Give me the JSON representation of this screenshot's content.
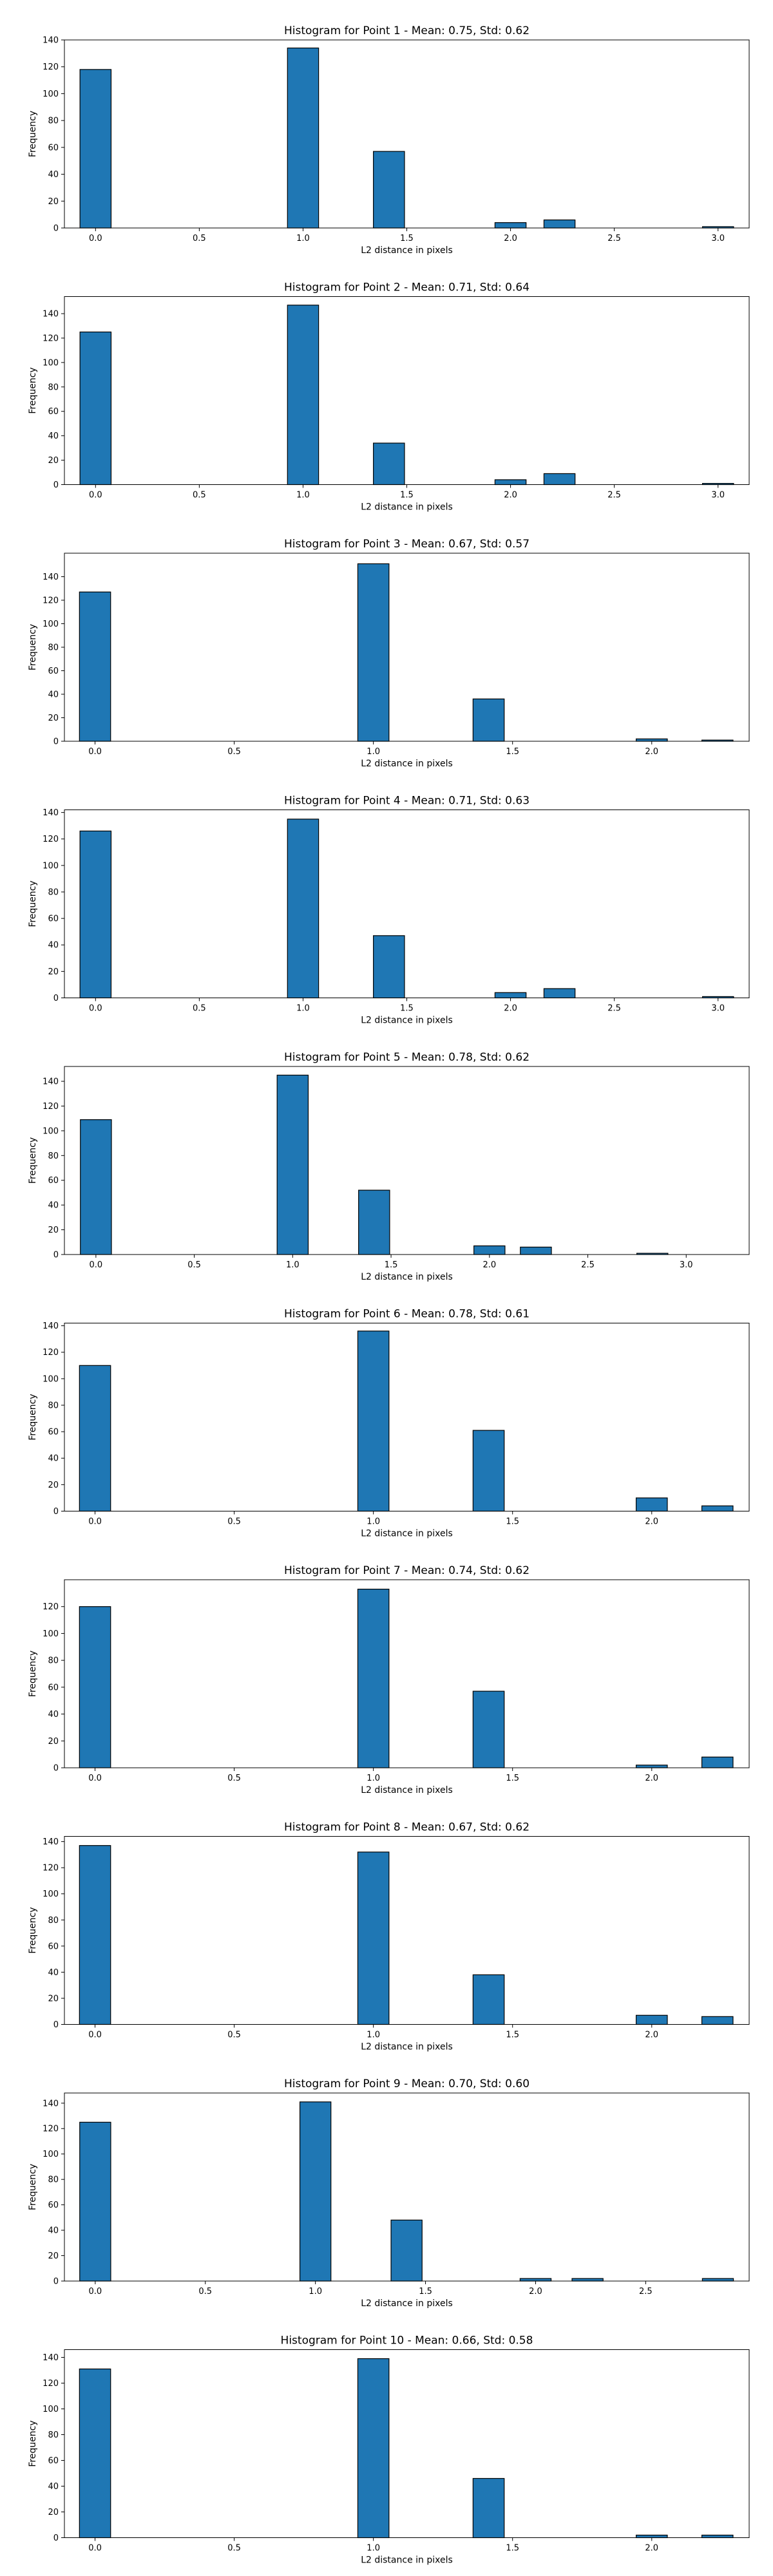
{
  "colors": {
    "bar": "#1f77b4",
    "edge": "#000000",
    "axes": "#000000",
    "background": "#ffffff"
  },
  "chart_data": [
    {
      "type": "bar",
      "title": "Histogram for Point 1 - Mean: 0.75, Std: 0.62",
      "xlabel": "L2 distance in pixels",
      "ylabel": "Frequency",
      "xlim": [
        -0.15,
        3.15
      ],
      "ylim": [
        0,
        140
      ],
      "xticks": [
        0.0,
        0.5,
        1.0,
        1.5,
        2.0,
        2.5,
        3.0
      ],
      "xtick_labels": [
        "0.0",
        "0.5",
        "1.0",
        "1.5",
        "2.0",
        "2.5",
        "3.0"
      ],
      "yticks": [
        0,
        20,
        40,
        60,
        80,
        100,
        120,
        140
      ],
      "ytick_labels": [
        "0",
        "20",
        "40",
        "60",
        "80",
        "100",
        "120",
        "140"
      ],
      "bin_width": 0.15,
      "bins": [
        {
          "x": 0.0,
          "value": 118
        },
        {
          "x": 1.0,
          "value": 134
        },
        {
          "x": 1.414,
          "value": 57
        },
        {
          "x": 2.0,
          "value": 4
        },
        {
          "x": 2.236,
          "value": 6
        },
        {
          "x": 3.0,
          "value": 1
        }
      ],
      "grid": false,
      "legend": "none"
    },
    {
      "type": "bar",
      "title": "Histogram for Point 2 - Mean: 0.71, Std: 0.64",
      "xlabel": "L2 distance in pixels",
      "ylabel": "Frequency",
      "xlim": [
        -0.15,
        3.15
      ],
      "ylim": [
        0,
        154
      ],
      "xticks": [
        0.0,
        0.5,
        1.0,
        1.5,
        2.0,
        2.5,
        3.0
      ],
      "xtick_labels": [
        "0.0",
        "0.5",
        "1.0",
        "1.5",
        "2.0",
        "2.5",
        "3.0"
      ],
      "yticks": [
        0,
        20,
        40,
        60,
        80,
        100,
        120,
        140
      ],
      "ytick_labels": [
        "0",
        "20",
        "40",
        "60",
        "80",
        "100",
        "120",
        "140"
      ],
      "bin_width": 0.15,
      "bins": [
        {
          "x": 0.0,
          "value": 125
        },
        {
          "x": 1.0,
          "value": 147
        },
        {
          "x": 1.414,
          "value": 34
        },
        {
          "x": 2.0,
          "value": 4
        },
        {
          "x": 2.236,
          "value": 9
        },
        {
          "x": 3.0,
          "value": 1
        }
      ],
      "grid": false,
      "legend": "none"
    },
    {
      "type": "bar",
      "title": "Histogram for Point 3 - Mean: 0.67, Std: 0.57",
      "xlabel": "L2 distance in pixels",
      "ylabel": "Frequency",
      "xlim": [
        -0.11,
        2.35
      ],
      "ylim": [
        0,
        160
      ],
      "xticks": [
        0.0,
        0.5,
        1.0,
        1.5,
        2.0
      ],
      "xtick_labels": [
        "0.0",
        "0.5",
        "1.0",
        "1.5",
        "2.0"
      ],
      "yticks": [
        0,
        20,
        40,
        60,
        80,
        100,
        120,
        140
      ],
      "ytick_labels": [
        "0",
        "20",
        "40",
        "60",
        "80",
        "100",
        "120",
        "140"
      ],
      "bin_width": 0.112,
      "bins": [
        {
          "x": 0.0,
          "value": 127
        },
        {
          "x": 1.0,
          "value": 151
        },
        {
          "x": 1.414,
          "value": 36
        },
        {
          "x": 2.0,
          "value": 2
        },
        {
          "x": 2.236,
          "value": 1
        }
      ],
      "grid": false,
      "legend": "none"
    },
    {
      "type": "bar",
      "title": "Histogram for Point 4 - Mean: 0.71, Std: 0.63",
      "xlabel": "L2 distance in pixels",
      "ylabel": "Frequency",
      "xlim": [
        -0.15,
        3.15
      ],
      "ylim": [
        0,
        142
      ],
      "xticks": [
        0.0,
        0.5,
        1.0,
        1.5,
        2.0,
        2.5,
        3.0
      ],
      "xtick_labels": [
        "0.0",
        "0.5",
        "1.0",
        "1.5",
        "2.0",
        "2.5",
        "3.0"
      ],
      "yticks": [
        0,
        20,
        40,
        60,
        80,
        100,
        120,
        140
      ],
      "ytick_labels": [
        "0",
        "20",
        "40",
        "60",
        "80",
        "100",
        "120",
        "140"
      ],
      "bin_width": 0.15,
      "bins": [
        {
          "x": 0.0,
          "value": 126
        },
        {
          "x": 1.0,
          "value": 135
        },
        {
          "x": 1.414,
          "value": 47
        },
        {
          "x": 2.0,
          "value": 4
        },
        {
          "x": 2.236,
          "value": 7
        },
        {
          "x": 3.0,
          "value": 1
        }
      ],
      "grid": false,
      "legend": "none"
    },
    {
      "type": "bar",
      "title": "Histogram for Point 5 - Mean: 0.78, Std: 0.62",
      "xlabel": "L2 distance in pixels",
      "ylabel": "Frequency",
      "xlim": [
        -0.16,
        3.32
      ],
      "ylim": [
        0,
        152
      ],
      "xticks": [
        0.0,
        0.5,
        1.0,
        1.5,
        2.0,
        2.5,
        3.0
      ],
      "xtick_labels": [
        "0.0",
        "0.5",
        "1.0",
        "1.5",
        "2.0",
        "2.5",
        "3.0"
      ],
      "yticks": [
        0,
        20,
        40,
        60,
        80,
        100,
        120,
        140
      ],
      "ytick_labels": [
        "0",
        "20",
        "40",
        "60",
        "80",
        "100",
        "120",
        "140"
      ],
      "bin_width": 0.158,
      "bins": [
        {
          "x": 0.0,
          "value": 109
        },
        {
          "x": 1.0,
          "value": 145
        },
        {
          "x": 1.414,
          "value": 52
        },
        {
          "x": 2.0,
          "value": 7
        },
        {
          "x": 2.236,
          "value": 6
        },
        {
          "x": 2.828,
          "value": 1
        }
      ],
      "grid": false,
      "legend": "none"
    },
    {
      "type": "bar",
      "title": "Histogram for Point 6 - Mean: 0.78, Std: 0.61",
      "xlabel": "L2 distance in pixels",
      "ylabel": "Frequency",
      "xlim": [
        -0.11,
        2.35
      ],
      "ylim": [
        0,
        142
      ],
      "xticks": [
        0.0,
        0.5,
        1.0,
        1.5,
        2.0
      ],
      "xtick_labels": [
        "0.0",
        "0.5",
        "1.0",
        "1.5",
        "2.0"
      ],
      "yticks": [
        0,
        20,
        40,
        60,
        80,
        100,
        120,
        140
      ],
      "ytick_labels": [
        "0",
        "20",
        "40",
        "60",
        "80",
        "100",
        "120",
        "140"
      ],
      "bin_width": 0.112,
      "bins": [
        {
          "x": 0.0,
          "value": 110
        },
        {
          "x": 1.0,
          "value": 136
        },
        {
          "x": 1.414,
          "value": 61
        },
        {
          "x": 2.0,
          "value": 10
        },
        {
          "x": 2.236,
          "value": 4
        }
      ],
      "grid": false,
      "legend": "none"
    },
    {
      "type": "bar",
      "title": "Histogram for Point 7 - Mean: 0.74, Std: 0.62",
      "xlabel": "L2 distance in pixels",
      "ylabel": "Frequency",
      "xlim": [
        -0.11,
        2.35
      ],
      "ylim": [
        0,
        140
      ],
      "xticks": [
        0.0,
        0.5,
        1.0,
        1.5,
        2.0
      ],
      "xtick_labels": [
        "0.0",
        "0.5",
        "1.0",
        "1.5",
        "2.0"
      ],
      "yticks": [
        0,
        20,
        40,
        60,
        80,
        100,
        120
      ],
      "ytick_labels": [
        "0",
        "20",
        "40",
        "60",
        "80",
        "100",
        "120"
      ],
      "bin_width": 0.112,
      "bins": [
        {
          "x": 0.0,
          "value": 120
        },
        {
          "x": 1.0,
          "value": 133
        },
        {
          "x": 1.414,
          "value": 57
        },
        {
          "x": 2.0,
          "value": 2
        },
        {
          "x": 2.236,
          "value": 8
        }
      ],
      "grid": false,
      "legend": "none"
    },
    {
      "type": "bar",
      "title": "Histogram for Point 8 - Mean: 0.67, Std: 0.62",
      "xlabel": "L2 distance in pixels",
      "ylabel": "Frequency",
      "xlim": [
        -0.11,
        2.35
      ],
      "ylim": [
        0,
        144
      ],
      "xticks": [
        0.0,
        0.5,
        1.0,
        1.5,
        2.0
      ],
      "xtick_labels": [
        "0.0",
        "0.5",
        "1.0",
        "1.5",
        "2.0"
      ],
      "yticks": [
        0,
        20,
        40,
        60,
        80,
        100,
        120,
        140
      ],
      "ytick_labels": [
        "0",
        "20",
        "40",
        "60",
        "80",
        "100",
        "120",
        "140"
      ],
      "bin_width": 0.112,
      "bins": [
        {
          "x": 0.0,
          "value": 137
        },
        {
          "x": 1.0,
          "value": 132
        },
        {
          "x": 1.414,
          "value": 38
        },
        {
          "x": 2.0,
          "value": 7
        },
        {
          "x": 2.236,
          "value": 6
        }
      ],
      "grid": false,
      "legend": "none"
    },
    {
      "type": "bar",
      "title": "Histogram for Point 9 - Mean: 0.70, Std: 0.60",
      "xlabel": "L2 distance in pixels",
      "ylabel": "Frequency",
      "xlim": [
        -0.14,
        2.97
      ],
      "ylim": [
        0,
        148
      ],
      "xticks": [
        0.0,
        0.5,
        1.0,
        1.5,
        2.0,
        2.5
      ],
      "xtick_labels": [
        "0.0",
        "0.5",
        "1.0",
        "1.5",
        "2.0",
        "2.5"
      ],
      "yticks": [
        0,
        20,
        40,
        60,
        80,
        100,
        120,
        140
      ],
      "ytick_labels": [
        "0",
        "20",
        "40",
        "60",
        "80",
        "100",
        "120",
        "140"
      ],
      "bin_width": 0.141,
      "bins": [
        {
          "x": 0.0,
          "value": 125
        },
        {
          "x": 1.0,
          "value": 141
        },
        {
          "x": 1.414,
          "value": 48
        },
        {
          "x": 2.0,
          "value": 2
        },
        {
          "x": 2.236,
          "value": 2
        },
        {
          "x": 2.828,
          "value": 2
        }
      ],
      "grid": false,
      "legend": "none"
    },
    {
      "type": "bar",
      "title": "Histogram for Point 10 - Mean: 0.66, Std: 0.58",
      "xlabel": "L2 distance in pixels",
      "ylabel": "Frequency",
      "xlim": [
        -0.11,
        2.35
      ],
      "ylim": [
        0,
        146
      ],
      "xticks": [
        0.0,
        0.5,
        1.0,
        1.5,
        2.0
      ],
      "xtick_labels": [
        "0.0",
        "0.5",
        "1.0",
        "1.5",
        "2.0"
      ],
      "yticks": [
        0,
        20,
        40,
        60,
        80,
        100,
        120,
        140
      ],
      "ytick_labels": [
        "0",
        "20",
        "40",
        "60",
        "80",
        "100",
        "120",
        "140"
      ],
      "bin_width": 0.112,
      "bins": [
        {
          "x": 0.0,
          "value": 131
        },
        {
          "x": 1.0,
          "value": 139
        },
        {
          "x": 1.414,
          "value": 46
        },
        {
          "x": 2.0,
          "value": 2
        },
        {
          "x": 2.236,
          "value": 2
        }
      ],
      "grid": false,
      "legend": "none"
    }
  ]
}
